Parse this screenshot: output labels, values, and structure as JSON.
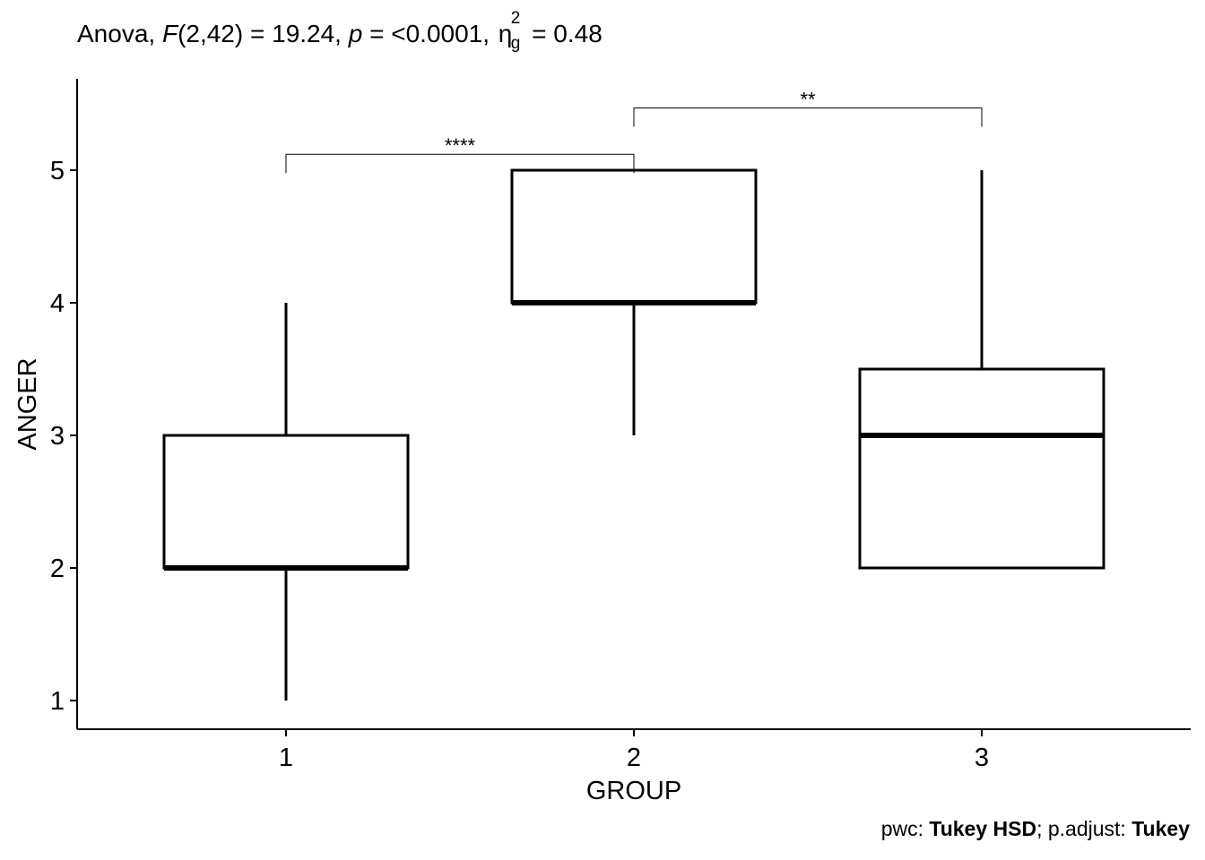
{
  "title": {
    "prefix": "Anova, ",
    "stat_symbol": "F",
    "df": "(2,42) = 19.24, ",
    "p_symbol": "p",
    "p_value": " = <0.0001, ",
    "effect_symbol": "η",
    "effect_sup": "2",
    "effect_sub": "g",
    "effect_value": " = 0.48"
  },
  "caption": {
    "pwc_label": "pwc: ",
    "pwc_value": "Tukey HSD",
    "sep": "; p.adjust: ",
    "adjust_value": "Tukey"
  },
  "chart_data": {
    "type": "box",
    "xlabel": "GROUP",
    "ylabel": "ANGER",
    "categories": [
      "1",
      "2",
      "3"
    ],
    "yticks": [
      1,
      2,
      3,
      4,
      5
    ],
    "ylim": [
      0.8,
      5.7
    ],
    "boxes": [
      {
        "category": "1",
        "min": 1,
        "q1": 2,
        "median": 2,
        "q3": 3,
        "max": 4
      },
      {
        "category": "2",
        "min": 3,
        "q1": 4,
        "median": 4,
        "q3": 5,
        "max": 5
      },
      {
        "category": "3",
        "min": 2,
        "q1": 2,
        "median": 3,
        "q3": 3.5,
        "max": 5
      }
    ],
    "comparisons": [
      {
        "from": "1",
        "to": "2",
        "label": "****",
        "y": 5.12
      },
      {
        "from": "2",
        "to": "3",
        "label": "**",
        "y": 5.47
      }
    ],
    "grid": false
  }
}
